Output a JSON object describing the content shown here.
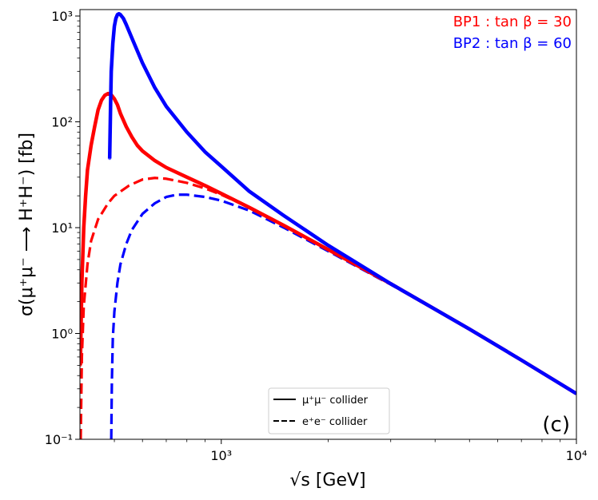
{
  "chart_data": {
    "type": "line",
    "panel_label": "(c)",
    "xlabel": "√s [GeV]",
    "ylabel": "σ(μ⁺μ⁻ ⟶ H⁺H⁻) [fb]",
    "xscale": "log",
    "yscale": "log",
    "xlim": [
      400,
      10000
    ],
    "ylim": [
      0.1,
      1150
    ],
    "x_ticks": [
      {
        "value": 1000,
        "label": "10³"
      },
      {
        "value": 10000,
        "label": "10⁴"
      }
    ],
    "y_ticks": [
      {
        "value": 0.1,
        "label": "10⁻¹"
      },
      {
        "value": 1,
        "label": "10⁰"
      },
      {
        "value": 10,
        "label": "10¹"
      },
      {
        "value": 100,
        "label": "10²"
      },
      {
        "value": 1000,
        "label": "10³"
      }
    ],
    "annotations": [
      {
        "text": "BP1 : tan β = 30",
        "color": "#ff0000"
      },
      {
        "text": "BP2 : tan β = 60",
        "color": "#0000ff"
      }
    ],
    "legend": {
      "position": "lower-center",
      "entries": [
        {
          "label": "μ⁺μ⁻ collider",
          "style": "solid"
        },
        {
          "label": "e⁺e⁻ collider",
          "style": "dashed"
        }
      ]
    },
    "series": [
      {
        "name": "BP1 μ⁺μ⁻ collider",
        "color": "#ff0000",
        "style": "solid",
        "x": [
          401,
          405,
          410,
          415,
          420,
          430,
          440,
          450,
          460,
          470,
          480,
          490,
          500,
          510,
          520,
          540,
          560,
          580,
          600,
          650,
          700,
          800,
          900,
          1000,
          1200,
          1500,
          2000,
          3000,
          5000,
          7000,
          10000
        ],
        "y": [
          0.5,
          3,
          10,
          20,
          35,
          60,
          90,
          130,
          160,
          178,
          185,
          180,
          165,
          145,
          120,
          90,
          72,
          60,
          53,
          43,
          37,
          30,
          25,
          21,
          15.5,
          10.5,
          6.2,
          2.95,
          1.1,
          0.56,
          0.27
        ]
      },
      {
        "name": "BP2 μ⁺μ⁻ collider",
        "color": "#0000ff",
        "style": "solid",
        "x": [
          485,
          488,
          490,
          495,
          500,
          505,
          510,
          515,
          520,
          530,
          540,
          560,
          580,
          600,
          650,
          700,
          800,
          900,
          1000,
          1200,
          1500,
          2000,
          3000,
          5000,
          7000,
          10000
        ],
        "y": [
          45,
          150,
          300,
          550,
          800,
          950,
          1030,
          1050,
          1030,
          950,
          830,
          620,
          470,
          360,
          210,
          140,
          80,
          52,
          38,
          22,
          13,
          6.8,
          2.95,
          1.1,
          0.56,
          0.27
        ]
      },
      {
        "name": "BP1 e⁺e⁻ collider",
        "color": "#ff0000",
        "style": "dashed",
        "x": [
          402,
          405,
          410,
          420,
          430,
          450,
          480,
          500,
          550,
          600,
          650,
          700,
          800,
          900,
          1000,
          1200,
          1500,
          2000,
          3000,
          5000,
          7000,
          10000
        ],
        "y": [
          0.1,
          0.6,
          1.8,
          4.5,
          7.5,
          12,
          17,
          20,
          25,
          28.5,
          29.5,
          29,
          26.5,
          23.5,
          20.5,
          15.5,
          10.5,
          6.2,
          2.95,
          1.1,
          0.56,
          0.27
        ]
      },
      {
        "name": "BP2 e⁺e⁻ collider",
        "color": "#0000ff",
        "style": "dashed",
        "x": [
          490,
          492,
          495,
          500,
          510,
          520,
          540,
          560,
          600,
          650,
          700,
          750,
          800,
          900,
          1000,
          1200,
          1500,
          2000,
          3000,
          5000,
          7000,
          10000
        ],
        "y": [
          0.1,
          0.35,
          0.9,
          1.6,
          3,
          4.5,
          7,
          9.5,
          13.5,
          17,
          19.5,
          20.5,
          20.5,
          19.5,
          18,
          14.5,
          10,
          6,
          2.9,
          1.1,
          0.56,
          0.27
        ]
      }
    ]
  }
}
